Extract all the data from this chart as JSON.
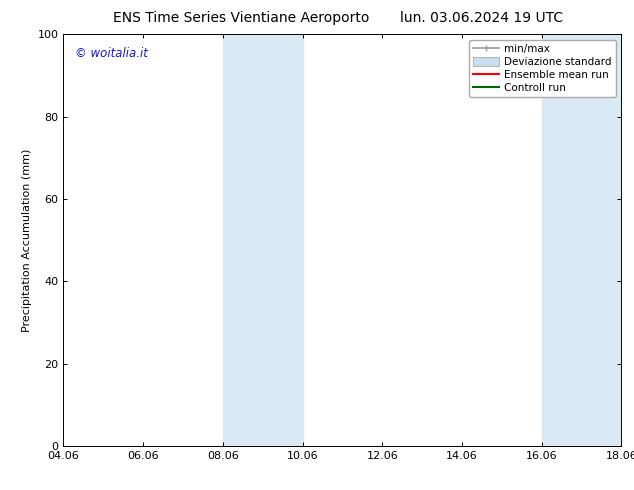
{
  "title_left": "ENS Time Series Vientiane Aeroporto",
  "title_right": "lun. 03.06.2024 19 UTC",
  "ylabel": "Precipitation Accumulation (mm)",
  "xlim_dates": [
    "04.06",
    "06.06",
    "08.06",
    "10.06",
    "12.06",
    "14.06",
    "16.06",
    "18.06"
  ],
  "xtick_positions": [
    0,
    2,
    4,
    6,
    8,
    10,
    12,
    14
  ],
  "xlim_num": [
    0,
    14
  ],
  "ylim": [
    0,
    100
  ],
  "yticks": [
    0,
    20,
    40,
    60,
    80,
    100
  ],
  "shaded_bands": [
    {
      "x_start": 4.0,
      "x_end": 6.0
    },
    {
      "x_start": 12.0,
      "x_end": 14.0
    }
  ],
  "shade_color": "#daeaf5",
  "background_color": "#ffffff",
  "watermark_text": "© woitalia.it",
  "watermark_color": "#1515cc",
  "legend_labels": [
    "min/max",
    "Deviazione standard",
    "Ensemble mean run",
    "Controll run"
  ],
  "legend_colors": [
    "#999999",
    "#c8dff0",
    "#ff0000",
    "#006600"
  ],
  "title_fontsize": 10,
  "tick_fontsize": 8,
  "ylabel_fontsize": 8,
  "legend_fontsize": 7.5
}
